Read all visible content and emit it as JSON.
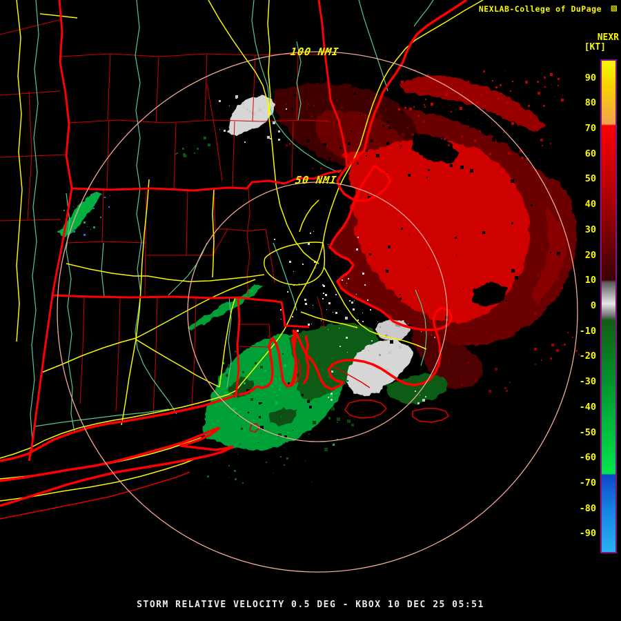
{
  "header": {
    "credit_text": "NEXLAB-College of DuPage",
    "credit_icon": "▧",
    "product_code": "NEXR",
    "units_label": "[KT]"
  },
  "rings": {
    "outer_label": "100 NMI",
    "inner_label": "50 NMI"
  },
  "colorbar": {
    "unit": "KT",
    "max": 97,
    "min": -97,
    "ticks": [
      90,
      80,
      70,
      60,
      50,
      40,
      30,
      20,
      10,
      0,
      -10,
      -20,
      -30,
      -40,
      -50,
      -60,
      -70,
      -80,
      -90
    ],
    "stops": [
      {
        "v": 97,
        "c": "#f8f800"
      },
      {
        "v": 87,
        "c": "#f8d200"
      },
      {
        "v": 72,
        "c": "#f0a24e"
      },
      {
        "v": 71.4,
        "c": "#fa0000"
      },
      {
        "v": 40,
        "c": "#a40000"
      },
      {
        "v": 10.5,
        "c": "#3a0000"
      },
      {
        "v": 9.5,
        "c": "#5a5a5a"
      },
      {
        "v": 1,
        "c": "#e6e6e6"
      },
      {
        "v": -4,
        "c": "#6a6a6a"
      },
      {
        "v": -5.5,
        "c": "#145c14"
      },
      {
        "v": -30,
        "c": "#00942e"
      },
      {
        "v": -55,
        "c": "#00cc42"
      },
      {
        "v": -66,
        "c": "#00e64e"
      },
      {
        "v": -66.6,
        "c": "#0f46c8"
      },
      {
        "v": -80,
        "c": "#1583e0"
      },
      {
        "v": -97,
        "c": "#28b2f5"
      }
    ]
  },
  "caption": "STORM RELATIVE VELOCITY 0.5 DEG - KBOX 10 DEC 25 05:51",
  "colors": {
    "background": "#000000",
    "county_line": "#d40000",
    "state_border": "#ff0000",
    "coastline": "#ff0000",
    "highway": "#f8f800",
    "river": "#58c98e",
    "range_ring": "#f2ab92",
    "label_yellow": "#f8f800",
    "caption_text": "#ececec",
    "colorbar_border": "#8c0f8c",
    "velocity_inbound_bright": "#cf0000",
    "velocity_inbound_dark": "#5c0000",
    "velocity_outbound_bright": "#00a038",
    "velocity_outbound_dark": "#0c5c16",
    "range_folded_gray": "#d6d6d6"
  }
}
